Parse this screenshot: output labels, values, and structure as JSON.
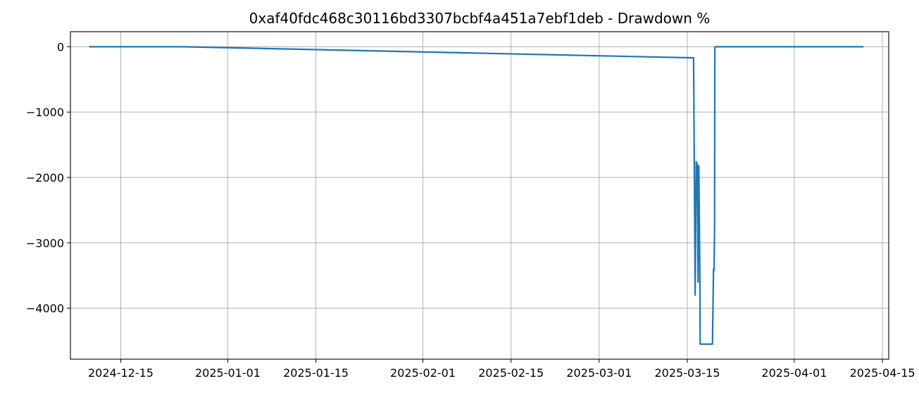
{
  "chart_data": {
    "type": "line",
    "title": "0xaf40fdc468c30116bd3307bcbf4a451a7ebf1deb - Drawdown %",
    "xlabel": "",
    "ylabel": "",
    "x_axis_type": "date",
    "xlim": [
      "2024-12-07",
      "2025-04-16"
    ],
    "ylim": [
      -4780,
      230
    ],
    "grid": true,
    "series_color": "#1f77b4",
    "x_ticks": [
      {
        "value": "2024-12-15",
        "label": "2024-12-15"
      },
      {
        "value": "2025-01-01",
        "label": "2025-01-01"
      },
      {
        "value": "2025-01-15",
        "label": "2025-01-15"
      },
      {
        "value": "2025-02-01",
        "label": "2025-02-01"
      },
      {
        "value": "2025-02-15",
        "label": "2025-02-15"
      },
      {
        "value": "2025-03-01",
        "label": "2025-03-01"
      },
      {
        "value": "2025-03-15",
        "label": "2025-03-15"
      },
      {
        "value": "2025-04-01",
        "label": "2025-04-01"
      },
      {
        "value": "2025-04-15",
        "label": "2025-04-15"
      }
    ],
    "y_ticks": [
      {
        "value": 0,
        "label": "0"
      },
      {
        "value": -1000,
        "label": "−1000"
      },
      {
        "value": -2000,
        "label": "−2000"
      },
      {
        "value": -3000,
        "label": "−3000"
      },
      {
        "value": -4000,
        "label": "−4000"
      }
    ],
    "series": [
      {
        "x": [
          "2024-12-10",
          "2024-12-25",
          "2025-03-16",
          "2025-03-16T06:00",
          "2025-03-16T10:00",
          "2025-03-16T14:00",
          "2025-03-16T17:00",
          "2025-03-16T20:00",
          "2025-03-17",
          "2025-03-17T01:00",
          "2025-03-19",
          "2025-03-19T04:00",
          "2025-03-19T06:00",
          "2025-03-19T08:00",
          "2025-03-19T09:00",
          "2025-03-19T10:00",
          "2025-04-12"
        ],
        "y": [
          0,
          0,
          -170,
          -3800,
          -1760,
          -1800,
          -3600,
          -1820,
          -3500,
          -4550,
          -4550,
          -3400,
          -3420,
          -2800,
          -15,
          0,
          0
        ]
      }
    ]
  }
}
